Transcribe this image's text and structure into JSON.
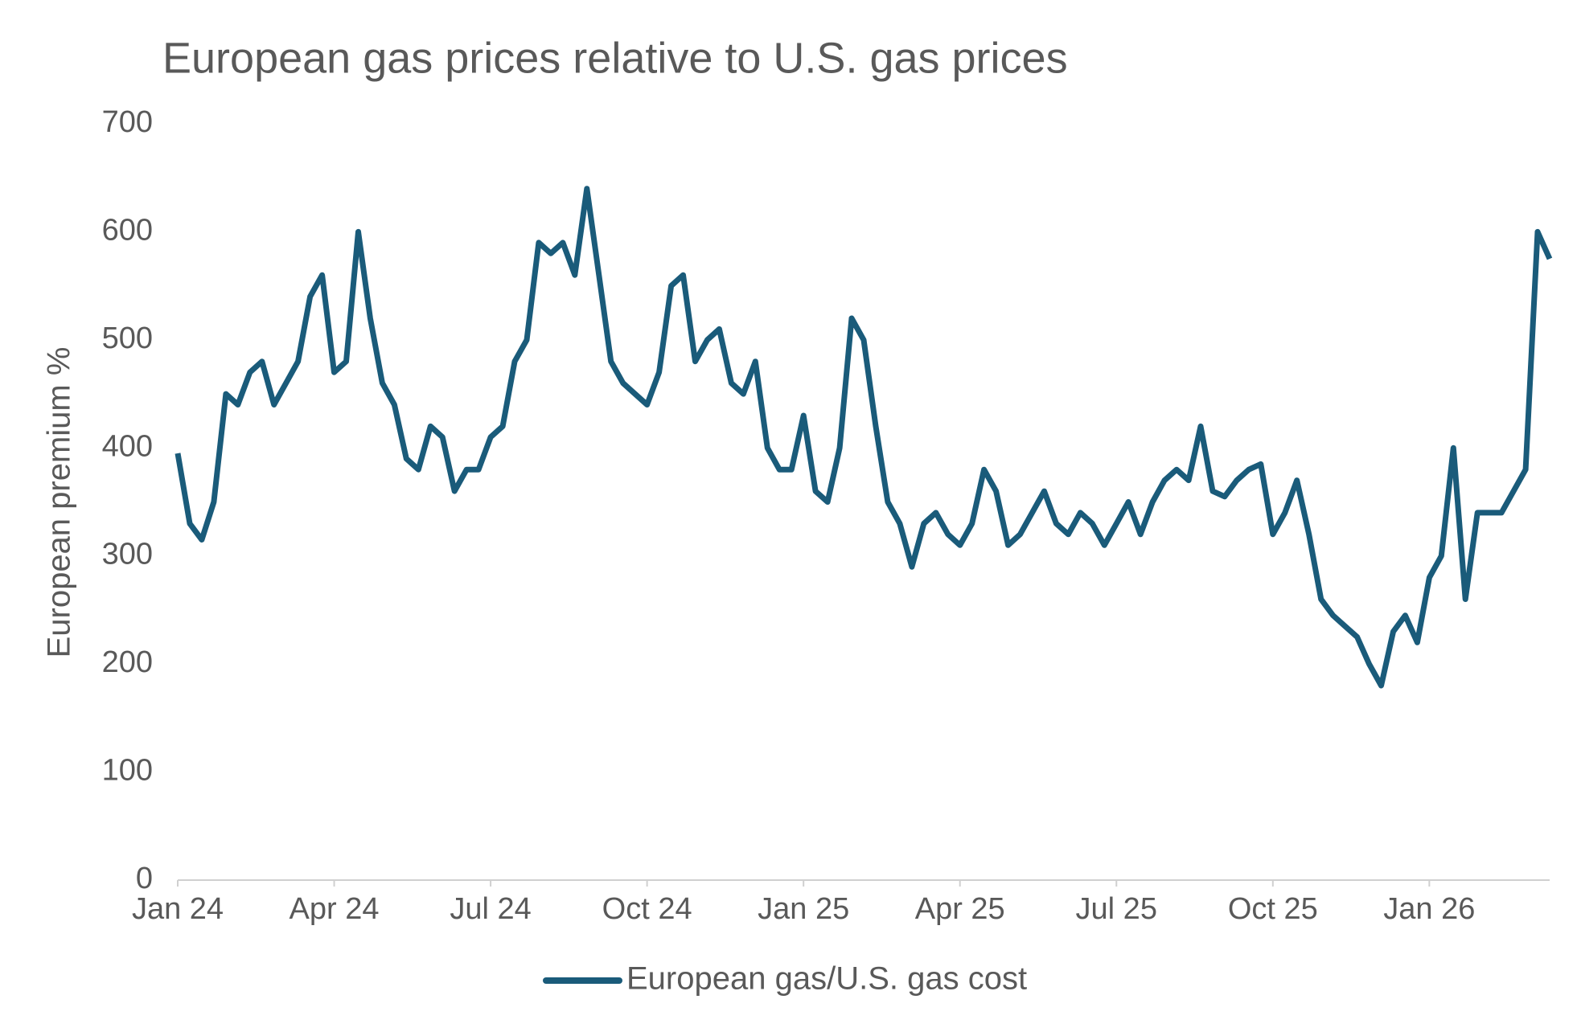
{
  "chart_data": {
    "type": "line",
    "title": "European gas prices relative to U.S. gas prices",
    "y_label": "European premium  %",
    "categories": [
      "Jan 24",
      null,
      null,
      null,
      null,
      null,
      null,
      null,
      null,
      null,
      null,
      null,
      null,
      "Apr 24",
      null,
      null,
      null,
      null,
      null,
      null,
      null,
      null,
      null,
      null,
      null,
      null,
      "Jul 24",
      null,
      null,
      null,
      null,
      null,
      null,
      null,
      null,
      null,
      null,
      null,
      null,
      "Oct 24",
      null,
      null,
      null,
      null,
      null,
      null,
      null,
      null,
      null,
      null,
      null,
      null,
      "Jan 25",
      null,
      null,
      null,
      null,
      null,
      null,
      null,
      null,
      null,
      null,
      null,
      null,
      "Apr 25",
      null,
      null,
      null,
      null,
      null,
      null,
      null,
      null,
      null,
      null,
      null,
      null,
      "Jul 25",
      null,
      null,
      null,
      null,
      null,
      null,
      null,
      null,
      null,
      null,
      null,
      null,
      "Oct 25",
      null,
      null,
      null,
      null,
      null,
      null,
      null,
      null,
      null,
      null,
      null,
      null,
      "Jan 26",
      null,
      null,
      null,
      null,
      null,
      null,
      null,
      null,
      null,
      null
    ],
    "series": [
      {
        "name": "European gas/U.S. gas cost",
        "color": "#1a5b7a",
        "values": [
          395,
          330,
          315,
          350,
          450,
          440,
          470,
          480,
          440,
          460,
          480,
          540,
          560,
          470,
          480,
          600,
          520,
          460,
          440,
          390,
          380,
          420,
          410,
          360,
          380,
          380,
          410,
          420,
          480,
          500,
          590,
          580,
          590,
          560,
          640,
          560,
          480,
          460,
          450,
          440,
          470,
          550,
          560,
          480,
          500,
          510,
          460,
          450,
          480,
          400,
          380,
          380,
          430,
          360,
          350,
          400,
          520,
          500,
          420,
          350,
          330,
          290,
          330,
          340,
          320,
          310,
          330,
          380,
          360,
          310,
          320,
          340,
          360,
          330,
          320,
          340,
          330,
          310,
          330,
          350,
          320,
          350,
          370,
          380,
          370,
          420,
          360,
          355,
          370,
          380,
          385,
          320,
          340,
          370,
          320,
          260,
          245,
          235,
          225,
          200,
          180,
          230,
          245,
          220,
          280,
          300,
          400,
          260,
          340,
          340,
          340,
          360,
          380,
          600,
          575
        ]
      }
    ],
    "ylim": [
      0,
      700
    ],
    "yticks": [
      0,
      100,
      200,
      300,
      400,
      500,
      600,
      700
    ],
    "grid": false,
    "legend": "bottom"
  }
}
